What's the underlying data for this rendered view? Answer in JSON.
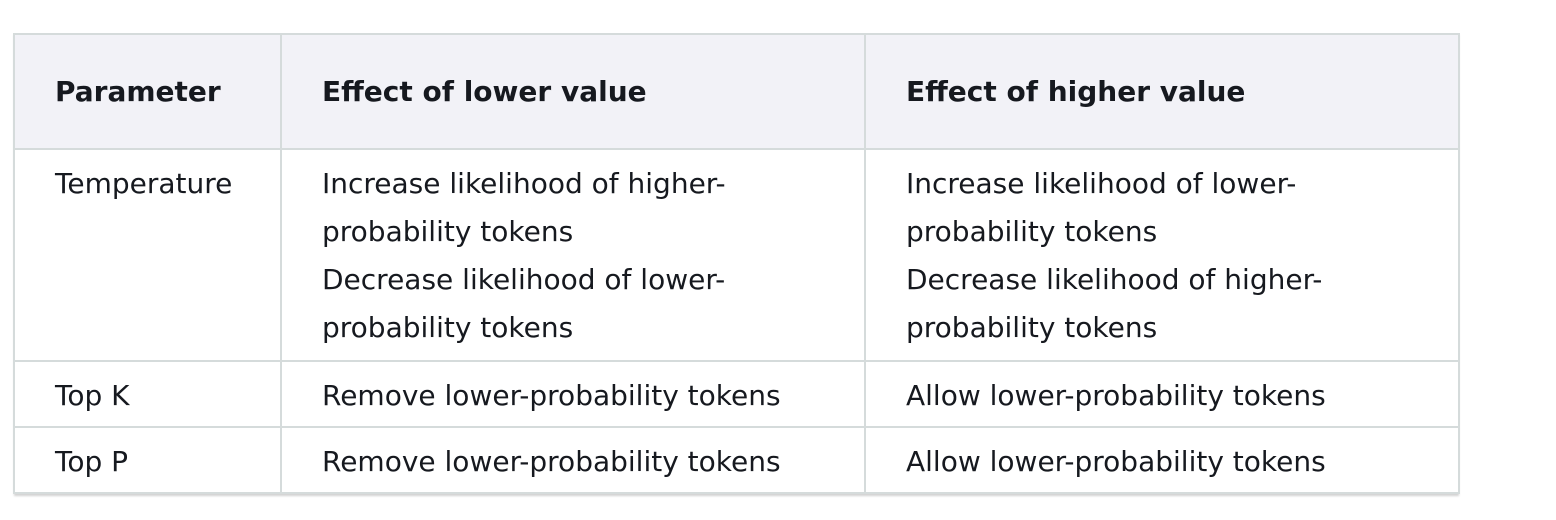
{
  "table": {
    "headers": [
      "Parameter",
      "Effect of lower value",
      "Effect of higher value"
    ],
    "rows": [
      {
        "parameter": "Temperature",
        "lower": [
          "Increase likelihood of higher-probability tokens",
          "Decrease likelihood of lower-probability tokens"
        ],
        "higher": [
          "Increase likelihood of lower-probability tokens",
          "Decrease likelihood of higher-probability tokens"
        ]
      },
      {
        "parameter": "Top K",
        "lower": [
          "Remove lower-probability tokens"
        ],
        "higher": [
          "Allow lower-probability tokens"
        ]
      },
      {
        "parameter": "Top P",
        "lower": [
          "Remove lower-probability tokens"
        ],
        "higher": [
          "Allow lower-probability tokens"
        ]
      }
    ]
  }
}
